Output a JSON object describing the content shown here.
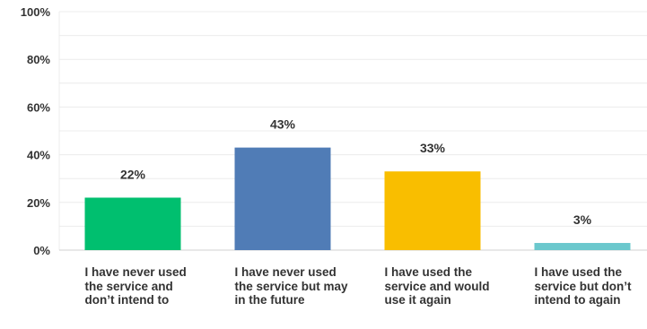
{
  "chart_data": {
    "type": "bar",
    "categories": [
      "I have never used the service and don’t intend to",
      "I have never used the service but may in the future",
      "I have used the service and would use it again",
      "I have used the service but don’t intend to again"
    ],
    "values": [
      22,
      43,
      33,
      3
    ],
    "data_labels": [
      "22%",
      "43%",
      "33%",
      "3%"
    ],
    "bar_colors": [
      "#00bf6f",
      "#507cb6",
      "#f9be00",
      "#6bc8cd"
    ],
    "ylim": [
      0,
      100
    ],
    "yticks": [
      0,
      20,
      40,
      60,
      80,
      100
    ],
    "ytick_labels": [
      "0%",
      "20%",
      "40%",
      "60%",
      "80%",
      "100%"
    ],
    "grid": true
  }
}
